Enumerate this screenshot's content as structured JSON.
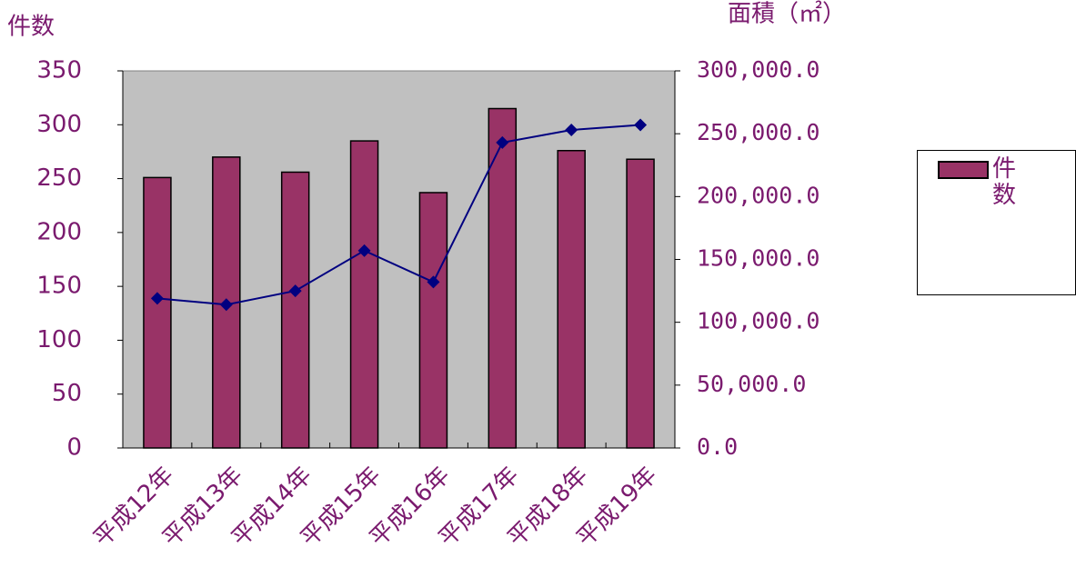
{
  "chart_data": {
    "type": "bar-line",
    "y_label": "件数",
    "y2_label": "面積（㎡）",
    "categories": [
      "平成12年",
      "平成13年",
      "平成14年",
      "平成15年",
      "平成16年",
      "平成17年",
      "平成18年",
      "平成19年"
    ],
    "series": [
      {
        "name": "件数",
        "type": "bar",
        "color": "#993366",
        "values": [
          251,
          270,
          256,
          285,
          237,
          315,
          276,
          268
        ]
      },
      {
        "type": "line",
        "axis": "y2",
        "color": "#000080",
        "values": [
          119000,
          114000,
          125000,
          157000,
          132000,
          243000,
          253000,
          257000
        ]
      }
    ],
    "ylim": [
      0,
      350
    ],
    "yticks": [
      0,
      50,
      100,
      150,
      200,
      250,
      300,
      350
    ],
    "y2lim": [
      0,
      300000
    ],
    "y2ticks": [
      {
        "value": 0,
        "label": "0.0"
      },
      {
        "value": 50000,
        "label": "50,000.0"
      },
      {
        "value": 100000,
        "label": "100,000.0"
      },
      {
        "value": 150000,
        "label": "150,000.0"
      },
      {
        "value": 200000,
        "label": "200,000.0"
      },
      {
        "value": 250000,
        "label": "250,000.0"
      },
      {
        "value": 300000,
        "label": "300,000.0"
      }
    ],
    "plot_background": "#c0c0c0",
    "legend": "right"
  }
}
